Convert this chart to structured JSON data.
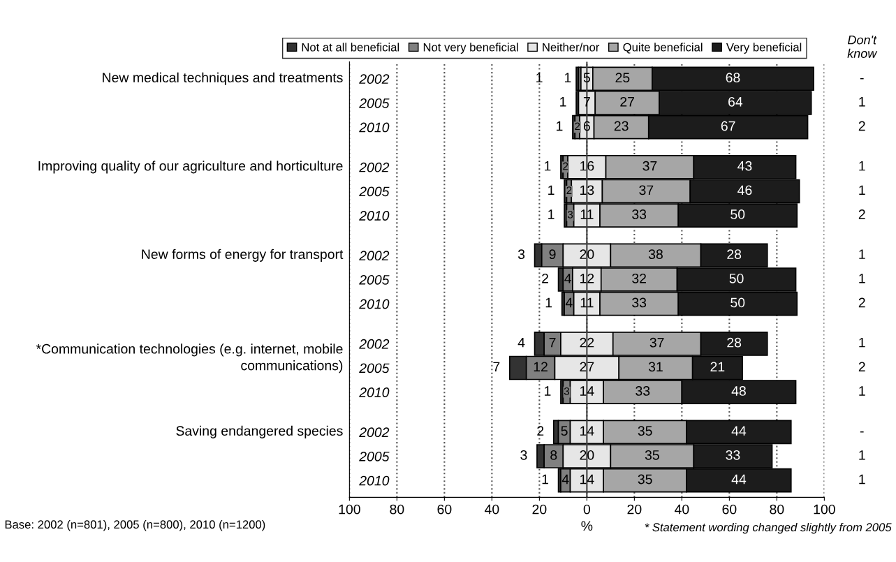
{
  "chart_data": {
    "type": "bar",
    "orientation": "horizontal",
    "categories": [
      "2002",
      "2005",
      "2010",
      "2002",
      "2005",
      "2010",
      "2002",
      "2005",
      "2010",
      "2002",
      "2005",
      "2010",
      "2002",
      "2005",
      "2010"
    ],
    "series": [
      {
        "name": "Not at all beneficial",
        "color": "#333333",
        "base": [
          -4.5,
          -4.5,
          -6,
          -11,
          -9.5,
          -9.5,
          -22,
          -12,
          -10.5,
          -22,
          -32.5,
          -11,
          -14,
          -21,
          -12
        ],
        "values": [
          1,
          1,
          1,
          1,
          1,
          1,
          3,
          2,
          1,
          4,
          7,
          1,
          2,
          3,
          1
        ],
        "value_labels": [
          "1",
          "1",
          "1",
          "1",
          "1",
          "1",
          "3",
          "2",
          "1",
          "4",
          "7",
          "1",
          "2",
          "3",
          "1"
        ]
      },
      {
        "name": "Not very beneficial",
        "color": "#808080",
        "base": [
          -3.5,
          null,
          -5,
          -10,
          -8.5,
          -8.5,
          -19,
          -10,
          -9.5,
          -18,
          -25.5,
          -10,
          -12,
          -18,
          -11
        ],
        "values": [
          1,
          null,
          2,
          2,
          2,
          3,
          9,
          4,
          4,
          7,
          12,
          3,
          5,
          8,
          4
        ],
        "value_labels": [
          "1",
          null,
          "2",
          "2",
          "2",
          "3",
          "9",
          "4",
          "4",
          "7",
          "12",
          "3",
          "5",
          "8",
          "4"
        ]
      },
      {
        "name": "Neither/nor",
        "color": "#e6e6e6",
        "base": [
          -2.5,
          -3.5,
          -3,
          -8,
          -6.5,
          -5.5,
          -10,
          -6,
          -5.5,
          -11,
          -13.5,
          -7,
          -7,
          -10,
          -7
        ],
        "values": [
          5,
          7,
          6,
          16,
          13,
          11,
          20,
          12,
          11,
          22,
          27,
          14,
          14,
          20,
          14
        ],
        "value_labels": [
          "5",
          "7",
          "6",
          "16",
          "13",
          "11",
          "20",
          "12",
          "11",
          "22",
          "27",
          "14",
          "14",
          "20",
          "14"
        ]
      },
      {
        "name": "Quite beneficial",
        "color": "#a6a6a6",
        "base": [
          2.5,
          3.5,
          3,
          8,
          6.5,
          5.5,
          10,
          6,
          5.5,
          11,
          13.5,
          7,
          7,
          10,
          7
        ],
        "values": [
          25,
          27,
          23,
          37,
          37,
          33,
          38,
          32,
          33,
          37,
          31,
          33,
          35,
          35,
          35
        ],
        "value_labels": [
          "25",
          "27",
          "23",
          "37",
          "37",
          "33",
          "38",
          "32",
          "33",
          "37",
          "31",
          "33",
          "35",
          "35",
          "35"
        ]
      },
      {
        "name": "Very beneficial",
        "color": "#1c1c1c",
        "base": [
          27.5,
          30.5,
          26,
          45,
          43.5,
          38.5,
          48,
          38,
          38.5,
          48,
          44.5,
          40,
          42,
          45,
          42
        ],
        "values": [
          68,
          64,
          67,
          43,
          46,
          50,
          28,
          50,
          50,
          28,
          21,
          48,
          44,
          33,
          44
        ],
        "value_labels": [
          "68",
          "64",
          "67",
          "43",
          "46",
          "50",
          "28",
          "50",
          "50",
          "28",
          "21",
          "48",
          "44",
          "33",
          "44"
        ]
      }
    ],
    "xlim": [
      -100,
      100
    ],
    "xticks": [
      {
        "value": -100,
        "label": "100"
      },
      {
        "value": -80,
        "label": "80"
      },
      {
        "value": -60,
        "label": "60"
      },
      {
        "value": -40,
        "label": "40"
      },
      {
        "value": -20,
        "label": "20"
      },
      0,
      20,
      40,
      60,
      80,
      100
    ],
    "xlabel": "%",
    "grid": "x",
    "legend": "top",
    "ref_lines": [
      {
        "axis": "x",
        "value": 0,
        "color": "#404040",
        "line_style": "solid"
      }
    ],
    "annotations": [
      "New medical techniques and treatments",
      "Improving quality of our agriculture and horticulture",
      "New forms of energy for transport",
      "*Communication technologies (e.g. internet, mobile\ncommunications)",
      "Saving endangered species",
      "Don't\nknow",
      "-",
      "1",
      "2",
      "1",
      "1",
      "2",
      "1",
      "1",
      "2",
      "1",
      "2",
      "1",
      "-",
      "1",
      "1",
      "Base: 2002 (n=801), 2005 (n=800), 2010 (n=1200)",
      "* Statement wording changed slightly from 2005"
    ]
  }
}
